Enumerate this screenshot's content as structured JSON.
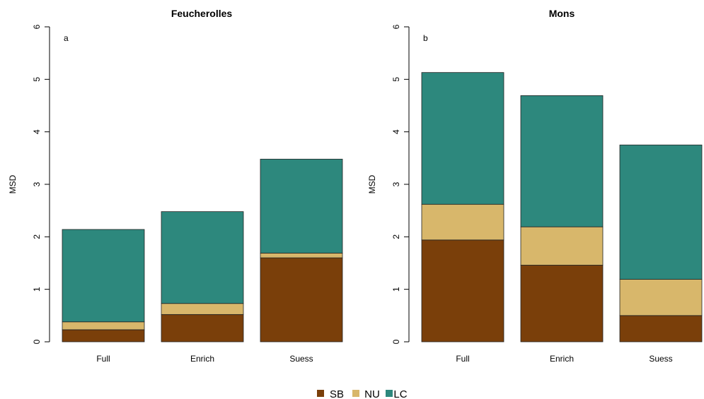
{
  "chart_data": [
    {
      "type": "bar",
      "stacked": true,
      "title": "Feucherolles",
      "panel_label": "a",
      "ylabel": "MSD",
      "xlabel": "",
      "ylim": [
        0,
        6
      ],
      "yticks": [
        0,
        1,
        2,
        3,
        4,
        5,
        6
      ],
      "categories": [
        "Full",
        "Enrich",
        "Suess"
      ],
      "series": [
        {
          "name": "SB",
          "color": "#7a3f0a",
          "values": [
            0.23,
            0.52,
            1.6
          ]
        },
        {
          "name": "NU",
          "color": "#d8b76b",
          "values": [
            0.15,
            0.21,
            0.09
          ]
        },
        {
          "name": "LC",
          "color": "#2d887d",
          "values": [
            1.76,
            1.75,
            1.79
          ]
        }
      ]
    },
    {
      "type": "bar",
      "stacked": true,
      "title": "Mons",
      "panel_label": "b",
      "ylabel": "MSD",
      "xlabel": "",
      "ylim": [
        0,
        6
      ],
      "yticks": [
        0,
        1,
        2,
        3,
        4,
        5,
        6
      ],
      "categories": [
        "Full",
        "Enrich",
        "Suess"
      ],
      "series": [
        {
          "name": "SB",
          "color": "#7a3f0a",
          "values": [
            1.94,
            1.46,
            0.5
          ]
        },
        {
          "name": "NU",
          "color": "#d8b76b",
          "values": [
            0.68,
            0.73,
            0.69
          ]
        },
        {
          "name": "LC",
          "color": "#2d887d",
          "values": [
            2.51,
            2.5,
            2.56
          ]
        }
      ]
    }
  ],
  "legend": {
    "position": "bottom-center",
    "entries": [
      {
        "label": "SB",
        "color": "#7a3f0a"
      },
      {
        "label": "NU",
        "color": "#d8b76b"
      },
      {
        "label": "LC",
        "color": "#2d887d"
      }
    ]
  }
}
